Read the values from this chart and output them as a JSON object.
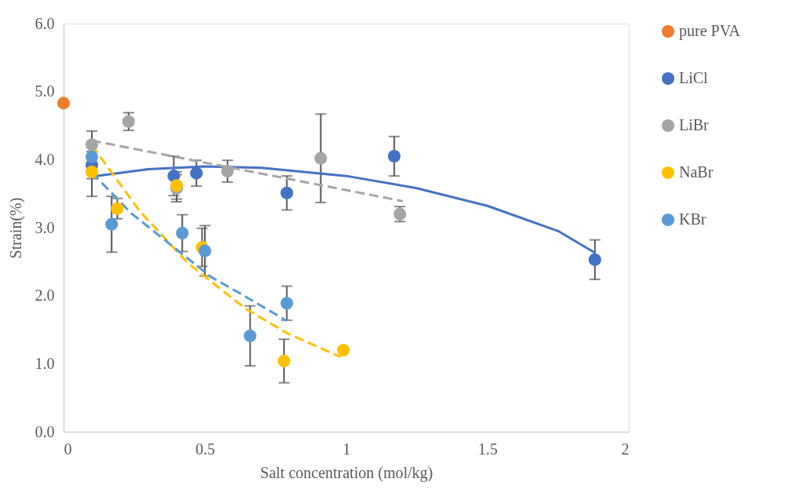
{
  "chart_data": {
    "type": "scatter",
    "xlabel": "Salt concentration (mol/kg)",
    "ylabel": "Strain(%)",
    "xlim": [
      0,
      2
    ],
    "xticks": [
      0,
      0.5,
      1,
      1.5,
      2
    ],
    "ylim": [
      0,
      6
    ],
    "yticks": [
      {
        "value": 0,
        "label": "0.0"
      },
      {
        "value": 1,
        "label": "1.0"
      },
      {
        "value": 2,
        "label": "2.0"
      },
      {
        "value": 3,
        "label": "3.0"
      },
      {
        "value": 4,
        "label": "4.0"
      },
      {
        "value": 5,
        "label": "5.0"
      },
      {
        "value": 6,
        "label": "6.0"
      }
    ],
    "grid": false,
    "legend": "right",
    "marker": "circle",
    "series": [
      {
        "name": "pure PVA",
        "color": "#ed7d31",
        "x": [
          0
        ],
        "values": [
          4.83
        ],
        "errors": [
          null
        ]
      },
      {
        "name": "LiCl",
        "color": "#4472c4",
        "x": [
          0.1,
          0.39,
          0.47,
          0.79,
          1.17,
          1.88
        ],
        "values": [
          3.92,
          3.76,
          3.8,
          3.51,
          4.05,
          2.53
        ],
        "errors": [
          0.2,
          0.29,
          0.19,
          0.25,
          0.29,
          0.29
        ]
      },
      {
        "name": "LiBr",
        "color": "#a5a5a5",
        "x": [
          0.1,
          0.23,
          0.4,
          0.58,
          0.91,
          1.19
        ],
        "values": [
          4.22,
          4.56,
          3.58,
          3.83,
          4.02,
          3.2
        ],
        "errors": [
          0.2,
          0.13,
          0.2,
          0.16,
          0.65,
          0.11
        ]
      },
      {
        "name": "NaBr",
        "color": "#ffc000",
        "x": [
          0.1,
          0.19,
          0.4,
          0.49,
          0.78,
          0.99
        ],
        "values": [
          3.82,
          3.28,
          3.62,
          2.71,
          1.04,
          1.2
        ],
        "errors": [
          0.36,
          0.15,
          0.2,
          0.28,
          0.32,
          null
        ]
      },
      {
        "name": "KBr",
        "color": "#5b9bd5",
        "x": [
          0.1,
          0.17,
          0.42,
          0.5,
          0.66,
          0.79
        ],
        "values": [
          4.04,
          3.05,
          2.92,
          2.66,
          1.41,
          1.89
        ],
        "errors": [
          0.2,
          0.41,
          0.27,
          0.37,
          0.44,
          0.25
        ]
      },
      {
        "type": "line",
        "color": "#4472c4",
        "line_style": "solid",
        "marker": "none",
        "x": [
          0.1,
          0.3,
          0.5,
          0.7,
          1.0,
          1.25,
          1.5,
          1.75,
          1.88
        ],
        "values": [
          3.75,
          3.86,
          3.9,
          3.88,
          3.76,
          3.58,
          3.32,
          2.95,
          2.63
        ]
      },
      {
        "type": "line",
        "color": "#a5a5a5",
        "line_style": "dashed",
        "marker": "none",
        "x": [
          0.1,
          1.2
        ],
        "values": [
          4.28,
          3.39
        ]
      },
      {
        "type": "line",
        "color": "#ffc000",
        "line_style": "dashed",
        "marker": "none",
        "x": [
          0.1,
          0.27,
          0.44,
          0.64,
          0.79,
          0.98
        ],
        "values": [
          4.21,
          3.24,
          2.48,
          1.82,
          1.45,
          1.1
        ]
      },
      {
        "type": "line",
        "color": "#5b9bd5",
        "line_style": "dashed",
        "marker": "none",
        "x": [
          0.1,
          0.24,
          0.52,
          0.63,
          0.79
        ],
        "values": [
          3.81,
          3.21,
          2.28,
          2.02,
          1.63
        ]
      }
    ]
  }
}
